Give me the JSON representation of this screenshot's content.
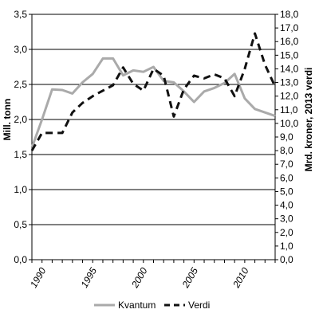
{
  "chart_data": {
    "type": "line",
    "xlabel": "",
    "ylabel_left": "Mill. tonn",
    "ylabel_right": "Mrd. kroner, 2013 verdi",
    "x": [
      1989,
      1990,
      1991,
      1992,
      1993,
      1994,
      1995,
      1996,
      1997,
      1998,
      1999,
      2000,
      2001,
      2002,
      2003,
      2004,
      2005,
      2006,
      2007,
      2008,
      2009,
      2010,
      2011,
      2012,
      2013
    ],
    "x_tick_labels": [
      "1990",
      "1995",
      "2000",
      "2005",
      "2010"
    ],
    "x_ticks": [
      1990,
      1995,
      2000,
      2005,
      2010
    ],
    "xlim": [
      1989,
      2013
    ],
    "ylim_left": [
      0,
      3.5
    ],
    "ylim_right": [
      0,
      18
    ],
    "left_tick_labels": [
      "0,0",
      "0,5",
      "1,0",
      "1,5",
      "2,0",
      "2,5",
      "3,0",
      "3,5"
    ],
    "right_tick_labels": [
      "0,0",
      "1,0",
      "2,0",
      "3,0",
      "4,0",
      "5,0",
      "6,0",
      "7,0",
      "8,0",
      "9,0",
      "10,0",
      "11,0",
      "12,0",
      "13,0",
      "14,0",
      "15,0",
      "16,0",
      "17,0",
      "18,0"
    ],
    "grid": "horizontal",
    "legend_position": "bottom",
    "series": [
      {
        "name": "Kvantum",
        "axis": "left",
        "style": "solid",
        "color": "#aaaaaa",
        "values": [
          1.6,
          2.0,
          2.43,
          2.42,
          2.37,
          2.53,
          2.65,
          2.87,
          2.87,
          2.63,
          2.7,
          2.68,
          2.75,
          2.55,
          2.53,
          2.4,
          2.25,
          2.4,
          2.45,
          2.52,
          2.65,
          2.3,
          2.15,
          2.1,
          2.05
        ]
      },
      {
        "name": "Verdi",
        "axis": "right",
        "style": "dashed",
        "color": "#111111",
        "values": [
          8.0,
          9.3,
          9.3,
          9.3,
          10.8,
          11.5,
          12.0,
          12.4,
          12.8,
          14.1,
          12.9,
          12.4,
          14.0,
          13.5,
          10.5,
          12.5,
          13.5,
          13.3,
          13.6,
          13.3,
          12.0,
          14.0,
          16.6,
          14.3,
          12.7
        ]
      }
    ]
  }
}
